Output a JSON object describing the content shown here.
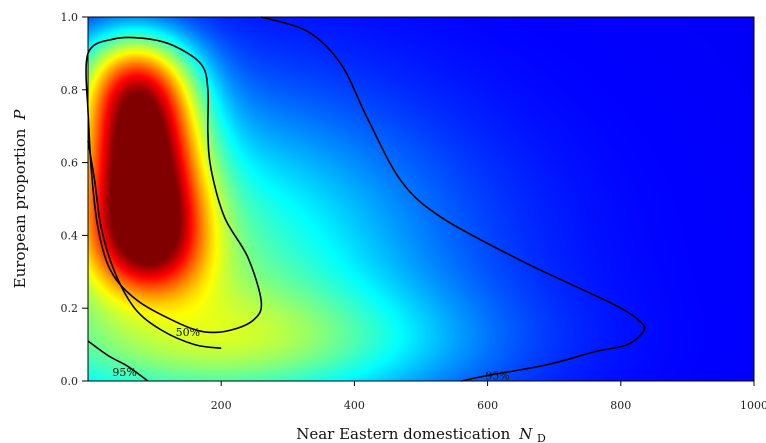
{
  "chart_data": {
    "type": "heatmap",
    "title": "",
    "xlabel": "Near Eastern domestication",
    "xlabel_symbol": "N",
    "xlabel_subscript": "D",
    "ylabel": "European proportion",
    "ylabel_symbol": "P",
    "xlim": [
      0,
      1000
    ],
    "ylim": [
      0.0,
      1.0
    ],
    "x_ticks": [
      200,
      400,
      600,
      800,
      1000
    ],
    "x_tick_labels": [
      "200",
      "400",
      "600",
      "800",
      "1000"
    ],
    "y_ticks": [
      0.0,
      0.2,
      0.4,
      0.6,
      0.8,
      1.0
    ],
    "y_tick_labels": [
      "0.0",
      "0.2",
      "0.4",
      "0.6",
      "0.8",
      "1.0"
    ],
    "colormap": "jet",
    "density_peak": {
      "x": 80,
      "y": 0.6
    },
    "contours": [
      {
        "label": "50%",
        "points": [
          [
            0,
            0.74
          ],
          [
            0,
            0.9
          ],
          [
            40,
            0.94
          ],
          [
            90,
            0.94
          ],
          [
            130,
            0.92
          ],
          [
            170,
            0.87
          ],
          [
            180,
            0.8
          ],
          [
            180,
            0.68
          ],
          [
            185,
            0.58
          ],
          [
            205,
            0.45
          ],
          [
            240,
            0.34
          ],
          [
            260,
            0.22
          ],
          [
            250,
            0.17
          ],
          [
            215,
            0.14
          ],
          [
            175,
            0.135
          ],
          [
            135,
            0.16
          ],
          [
            75,
            0.22
          ],
          [
            35,
            0.3
          ],
          [
            15,
            0.42
          ],
          [
            5,
            0.58
          ],
          [
            0,
            0.74
          ]
        ],
        "closed": true
      },
      {
        "label": "95%",
        "points": [
          [
            260,
            1.0
          ],
          [
            330,
            0.96
          ],
          [
            380,
            0.87
          ],
          [
            420,
            0.72
          ],
          [
            470,
            0.55
          ],
          [
            530,
            0.45
          ],
          [
            640,
            0.34
          ],
          [
            720,
            0.27
          ],
          [
            790,
            0.21
          ],
          [
            825,
            0.17
          ],
          [
            835,
            0.14
          ],
          [
            810,
            0.1
          ],
          [
            760,
            0.08
          ],
          [
            690,
            0.045
          ],
          [
            600,
            0.015
          ],
          [
            560,
            0.0
          ]
        ],
        "closed": false,
        "label_at": [
          615,
          0.015
        ]
      },
      {
        "label": "95%",
        "points": [
          [
            0,
            0.66
          ],
          [
            10,
            0.55
          ],
          [
            20,
            0.42
          ],
          [
            40,
            0.3
          ],
          [
            70,
            0.2
          ],
          [
            110,
            0.14
          ],
          [
            160,
            0.1
          ],
          [
            200,
            0.09
          ]
        ],
        "closed": false
      },
      {
        "label": "95%",
        "points": [
          [
            0,
            0.11
          ],
          [
            30,
            0.07
          ],
          [
            60,
            0.04
          ],
          [
            90,
            0.0
          ]
        ],
        "closed": false,
        "label_at": [
          55,
          0.025
        ]
      }
    ]
  }
}
